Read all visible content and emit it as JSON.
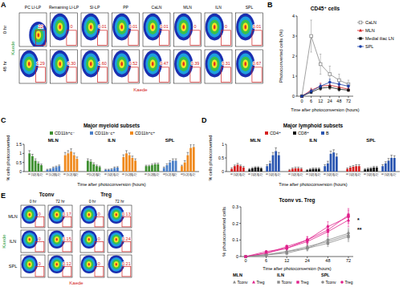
{
  "chart_data": [
    {
      "type": "flow",
      "panel_label": "A",
      "columns": [
        "PC LI-LP",
        "Remaining LI-LP",
        "SI-LP",
        "PP",
        "CaLN",
        "MLN",
        "ILN",
        "SPL"
      ],
      "rows": [
        "0 hr",
        "48 hr"
      ],
      "values": [
        [
          22,
          0,
          0.01,
          0.01,
          0.01,
          0,
          0,
          0.01
        ],
        [
          1.29,
          0.3,
          1.6,
          0.52,
          0.47,
          0.39,
          0.31,
          0.67
        ]
      ],
      "value_labels": [
        [
          "22",
          "0",
          "0.01",
          "0.01",
          "0.01",
          "0",
          "0",
          "0.01"
        ],
        [
          "1.29",
          "0.30",
          "1.60",
          "0.52",
          "0.47",
          "0.39",
          "0.31",
          "0.67"
        ]
      ],
      "x_label": "Kaede",
      "y_label": "Kaede"
    },
    {
      "type": "line",
      "panel_label": "B",
      "title": "CD45⁺ cells",
      "x_label": "Time after photoconversion (hours)",
      "y_label": "Photoconverted cells (%)",
      "categories": [
        "0",
        "6",
        "12",
        "24",
        "48",
        "72"
      ],
      "ylim": [
        0,
        4
      ],
      "yticks": [
        0,
        1,
        2,
        3,
        4
      ],
      "legend": "right",
      "series": [
        {
          "name": "CaLN",
          "color": "#888888",
          "marker": "square-open",
          "values": [
            0,
            3.0,
            1.6,
            1.1,
            0.8,
            0.6
          ],
          "errors": [
            0,
            0.8,
            0.5,
            0.4,
            0.3,
            0.2
          ]
        },
        {
          "name": "MLN",
          "color": "#d62020",
          "marker": "triangle",
          "values": [
            0,
            0.3,
            0.5,
            0.55,
            0.45,
            0.35
          ],
          "errors": [
            0,
            0.1,
            0.15,
            0.15,
            0.1,
            0.1
          ]
        },
        {
          "name": "Medial iliac LN",
          "color": "#111111",
          "marker": "square",
          "values": [
            0,
            0.2,
            0.4,
            0.45,
            0.35,
            0.3
          ],
          "errors": [
            0,
            0.05,
            0.1,
            0.1,
            0.1,
            0.05
          ]
        },
        {
          "name": "SPL",
          "color": "#1a3fa8",
          "marker": "circle",
          "values": [
            0,
            0.25,
            0.5,
            0.7,
            0.6,
            0.5
          ],
          "errors": [
            0,
            0.1,
            0.1,
            0.15,
            0.1,
            0.1
          ]
        }
      ]
    },
    {
      "type": "bar",
      "panel_label": "C",
      "title": "Major myeloid subsets",
      "x_label": "Time after photoconversion (hours)",
      "y_label": "% cells photoconverted",
      "groups": [
        "MLN",
        "ILN",
        "SPL"
      ],
      "categories": [
        "6",
        "12",
        "24",
        "48",
        "72"
      ],
      "ylim": [
        0,
        1.5
      ],
      "yticks": [
        0,
        0.5,
        1,
        1.5
      ],
      "legend": "top",
      "series": [
        {
          "name": "CD11b⁺c⁻",
          "color": "#3d8f2f",
          "values": [
            [
              1.0,
              0.85,
              0.6,
              0.45,
              0.35
            ],
            [
              0.6,
              0.55,
              0.4,
              0.3,
              0.25
            ],
            [
              0.3,
              0.3,
              0.35,
              0.4,
              0.4
            ]
          ],
          "errors": [
            [
              0.15,
              0.1,
              0.1,
              0.08,
              0.06
            ],
            [
              0.1,
              0.1,
              0.08,
              0.06,
              0.05
            ],
            [
              0.05,
              0.05,
              0.06,
              0.06,
              0.06
            ]
          ]
        },
        {
          "name": "CD11b⁻c⁺",
          "color": "#4a7fc8",
          "values": [
            [
              0.1,
              0.12,
              0.2,
              0.25,
              0.3
            ],
            [
              0.1,
              0.1,
              0.12,
              0.2,
              0.22
            ],
            [
              0.2,
              0.35,
              0.5,
              0.6,
              0.6
            ]
          ],
          "errors": [
            [
              0.03,
              0.03,
              0.05,
              0.05,
              0.06
            ],
            [
              0.03,
              0.03,
              0.04,
              0.05,
              0.05
            ],
            [
              0.05,
              0.08,
              0.1,
              0.1,
              0.1
            ]
          ]
        },
        {
          "name": "CD11b⁺c⁺",
          "color": "#f08a1e",
          "values": [
            [
              0.9,
              1.0,
              1.1,
              0.9,
              0.7
            ],
            [
              0.8,
              1.0,
              0.9,
              0.75,
              0.6
            ],
            [
              0.3,
              0.5,
              0.9,
              1.3,
              1.35
            ]
          ],
          "errors": [
            [
              0.15,
              0.15,
              0.15,
              0.12,
              0.1
            ],
            [
              0.12,
              0.15,
              0.12,
              0.1,
              0.1
            ],
            [
              0.05,
              0.1,
              0.15,
              0.2,
              0.15
            ]
          ]
        }
      ]
    },
    {
      "type": "bar",
      "panel_label": "D",
      "title": "Major lymphoid subsets",
      "x_label": "Time after photoconversion (hours)",
      "y_label": "% cells photoconverted",
      "groups": [
        "MLN",
        "ILN",
        "SPL"
      ],
      "categories": [
        "6",
        "12",
        "24",
        "48",
        "72"
      ],
      "ylim": [
        0,
        1
      ],
      "yticks": [
        0,
        0.5,
        1
      ],
      "legend": "top",
      "series": [
        {
          "name": "CD4⁺",
          "color": "#d62020",
          "values": [
            [
              0.1,
              0.2,
              0.25,
              0.2,
              0.15
            ],
            [
              0.05,
              0.1,
              0.12,
              0.12,
              0.1
            ],
            [
              0.1,
              0.15,
              0.18,
              0.2,
              0.2
            ]
          ],
          "errors": [
            [
              0.04,
              0.04,
              0.05,
              0.04,
              0.04
            ],
            [
              0.03,
              0.03,
              0.04,
              0.04,
              0.03
            ],
            [
              0.03,
              0.04,
              0.04,
              0.05,
              0.05
            ]
          ]
        },
        {
          "name": "CD8⁺",
          "color": "#111111",
          "values": [
            [
              0.08,
              0.12,
              0.15,
              0.15,
              0.12
            ],
            [
              0.05,
              0.08,
              0.1,
              0.1,
              0.1
            ],
            [
              0.08,
              0.1,
              0.12,
              0.15,
              0.15
            ]
          ],
          "errors": [
            [
              0.03,
              0.03,
              0.03,
              0.03,
              0.03
            ],
            [
              0.02,
              0.03,
              0.03,
              0.03,
              0.03
            ],
            [
              0.03,
              0.03,
              0.03,
              0.04,
              0.04
            ]
          ]
        },
        {
          "name": "B",
          "color": "#2a55b0",
          "values": [
            [
              0.2,
              0.3,
              0.6,
              0.75,
              0.6
            ],
            [
              0.2,
              0.3,
              0.65,
              0.7,
              0.55
            ],
            [
              0.2,
              0.3,
              0.4,
              0.5,
              0.5
            ]
          ],
          "errors": [
            [
              0.05,
              0.08,
              0.1,
              0.12,
              0.1
            ],
            [
              0.05,
              0.08,
              0.1,
              0.1,
              0.1
            ],
            [
              0.05,
              0.06,
              0.08,
              0.1,
              0.08
            ]
          ]
        }
      ]
    },
    {
      "type": "flow",
      "panel_label": "E",
      "column_groups": [
        "Tconv",
        "Treg"
      ],
      "columns": [
        "0 hr",
        "72 hr",
        "0 hr",
        "72 hr"
      ],
      "rows": [
        "MLN",
        "ILN",
        "SPL"
      ],
      "values": [
        [
          0,
          0.17,
          0,
          0.13
        ],
        [
          0,
          0.15,
          0,
          0.24
        ],
        [
          0,
          0.12,
          0,
          0.21
        ]
      ],
      "value_labels": [
        [
          "0",
          "0.17",
          "0",
          "0.13"
        ],
        [
          "0",
          "0.15",
          "0",
          "0.24"
        ],
        [
          "0",
          "0.12",
          "0",
          "0.21"
        ]
      ],
      "x_label": "Kaede",
      "y_label": "Kaede"
    },
    {
      "type": "line",
      "title": "Tconv vs. Treg",
      "x_label": "Time after photoconversion (hours)",
      "y_label": "% photoconverted cells",
      "categories": [
        "0",
        "6",
        "12",
        "24",
        "48",
        "72"
      ],
      "ylim": [
        0,
        0.3
      ],
      "yticks": [
        0,
        0.1,
        0.2,
        0.3
      ],
      "legend": "bottom",
      "annotations": [
        "*",
        "**"
      ],
      "series": [
        {
          "name": "Tconv",
          "region": "MLN",
          "color": "#8a8a8a",
          "marker": "triangle",
          "values": [
            0,
            0.01,
            0.03,
            0.06,
            0.09,
            0.13
          ],
          "errors": [
            0,
            0.005,
            0.01,
            0.015,
            0.02,
            0.03
          ]
        },
        {
          "name": "Treg",
          "region": "MLN",
          "color": "#e0208c",
          "marker": "triangle",
          "values": [
            0,
            0.02,
            0.05,
            0.09,
            0.15,
            0.22
          ],
          "errors": [
            0,
            0.005,
            0.01,
            0.02,
            0.03,
            0.04
          ]
        },
        {
          "name": "Tconv",
          "region": "ILN",
          "color": "#8a8a8a",
          "marker": "square",
          "values": [
            0,
            0.01,
            0.02,
            0.05,
            0.08,
            0.12
          ],
          "errors": [
            0,
            0.005,
            0.01,
            0.015,
            0.02,
            0.03
          ]
        },
        {
          "name": "Treg",
          "region": "ILN",
          "color": "#e0208c",
          "marker": "square",
          "values": [
            0,
            0.02,
            0.06,
            0.1,
            0.16,
            0.25
          ],
          "errors": [
            0,
            0.005,
            0.01,
            0.02,
            0.03,
            0.04
          ]
        },
        {
          "name": "Tconv",
          "region": "SPL",
          "color": "#8a8a8a",
          "marker": "circle",
          "values": [
            0,
            0.01,
            0.03,
            0.05,
            0.1,
            0.14
          ],
          "errors": [
            0,
            0.005,
            0.01,
            0.015,
            0.02,
            0.03
          ]
        },
        {
          "name": "Treg",
          "region": "SPL",
          "color": "#e0208c",
          "marker": "circle",
          "values": [
            0,
            0.03,
            0.05,
            0.1,
            0.18,
            0.24
          ],
          "errors": [
            0,
            0.005,
            0.01,
            0.02,
            0.03,
            0.04
          ]
        }
      ]
    }
  ]
}
